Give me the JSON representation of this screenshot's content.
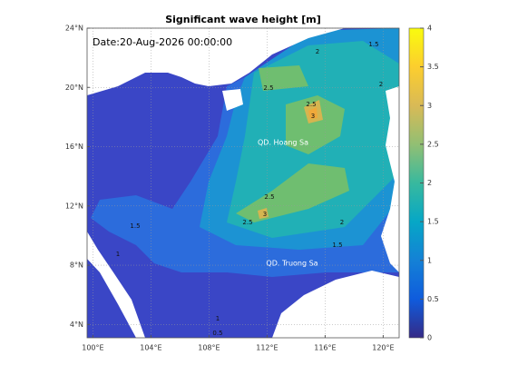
{
  "map": {
    "title": "Significant wave height [m]",
    "date_label": "Date:20-Aug-2026 00:00:00",
    "place_labels": [
      "QD. Hoang Sa",
      "QD. Truong Sa"
    ],
    "contour_labels": [
      1.5,
      2,
      2.5,
      3,
      2.5,
      2,
      2.5,
      3,
      2.5,
      2,
      1.5,
      1.5,
      1,
      1,
      0.5
    ],
    "xlim": [
      99.6,
      121.1
    ],
    "ylim": [
      3.1,
      24
    ],
    "xticks": [
      {
        "value": 100,
        "label": "100°E"
      },
      {
        "value": 104,
        "label": "104°E"
      },
      {
        "value": 108,
        "label": "108°E"
      },
      {
        "value": 112,
        "label": "112°E"
      },
      {
        "value": 116,
        "label": "116°E"
      },
      {
        "value": 120,
        "label": "120°E"
      }
    ],
    "yticks": [
      {
        "value": 4,
        "label": "4°N"
      },
      {
        "value": 8,
        "label": "8°N"
      },
      {
        "value": 12,
        "label": "12°N"
      },
      {
        "value": 16,
        "label": "16°N"
      },
      {
        "value": 20,
        "label": "20°N"
      },
      {
        "value": 24,
        "label": "24°N"
      }
    ],
    "grid": true,
    "colorbar": {
      "lim": [
        0,
        4
      ],
      "ticks": [
        0,
        0.5,
        1,
        1.5,
        2,
        2.5,
        3,
        3.5,
        4
      ]
    }
  }
}
